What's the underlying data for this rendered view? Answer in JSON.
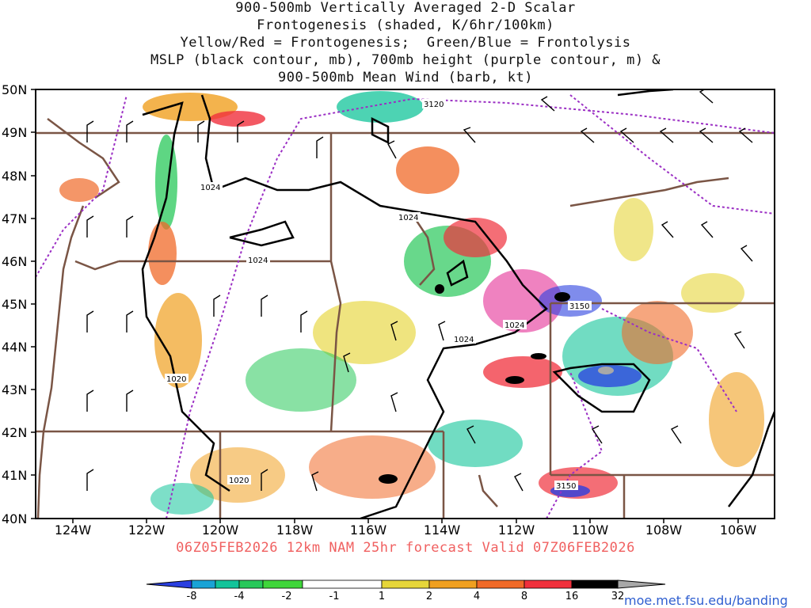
{
  "title": {
    "line1": "900-500mb Vertically Averaged 2-D Scalar",
    "line2": "Frontogenesis (shaded, K/6hr/100km)",
    "line3": "Yellow/Red = Frontogenesis;  Green/Blue = Frontolysis",
    "line4": "MSLP (black contour, mb), 700mb height (purple contour, m) &",
    "line5": "900-500mb Mean Wind (barb, kt)"
  },
  "axes": {
    "lat_labels": [
      "50N",
      "49N",
      "48N",
      "47N",
      "46N",
      "45N",
      "44N",
      "43N",
      "42N",
      "41N",
      "40N"
    ],
    "lon_labels": [
      "124W",
      "122W",
      "120W",
      "118W",
      "116W",
      "114W",
      "112W",
      "110W",
      "108W",
      "106W"
    ],
    "lat_range": [
      40,
      50
    ],
    "lon_range": [
      -125,
      -105
    ]
  },
  "contour_labels": {
    "mslp": [
      "1024",
      "1024",
      "1024",
      "1024",
      "1024",
      "1020",
      "1020"
    ],
    "height_700mb": [
      "3120",
      "3150",
      "3150"
    ]
  },
  "colorbar": {
    "labels": [
      "-8",
      "-4",
      "-2",
      "-1",
      "1",
      "2",
      "4",
      "8",
      "16",
      "32"
    ],
    "colors": [
      "#2a3fe0",
      "#1aa3d6",
      "#12c49a",
      "#28c85a",
      "#3fd63a",
      "#ffffff",
      "#e6d63a",
      "#f0a020",
      "#f06a28",
      "#f0303c",
      "#e21c8c",
      "#000000",
      "#a8a8a8"
    ]
  },
  "valid_text": "06Z05FEB2026 12km NAM 25hr forecast Valid 07Z06FEB2026",
  "credit": "moe.met.fsu.edu/banding"
}
